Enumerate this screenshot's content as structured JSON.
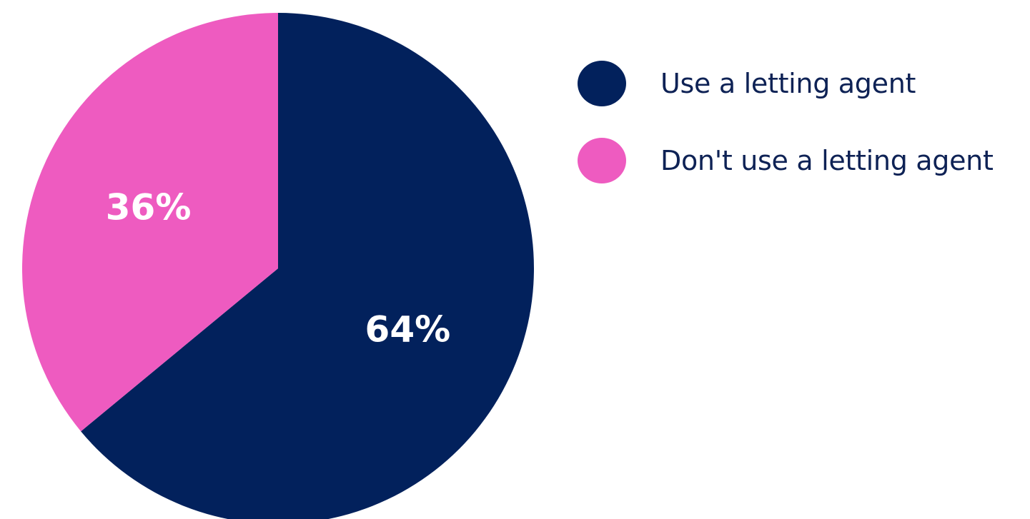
{
  "chart_data": {
    "type": "pie",
    "title": "",
    "slices": [
      {
        "label": "Use a letting agent",
        "value": 64,
        "display": "64%",
        "color": "#02215c"
      },
      {
        "label": "Don't use a letting agent",
        "value": 36,
        "display": "36%",
        "color": "#ee5bc0"
      }
    ],
    "legend_placement": "right",
    "start_angle": "12 o'clock",
    "direction": "clockwise"
  },
  "legend": {
    "items": [
      {
        "label": "Use a letting agent",
        "color": "#02215c"
      },
      {
        "label": "Don't use a letting agent",
        "color": "#ee5bc0"
      }
    ]
  }
}
